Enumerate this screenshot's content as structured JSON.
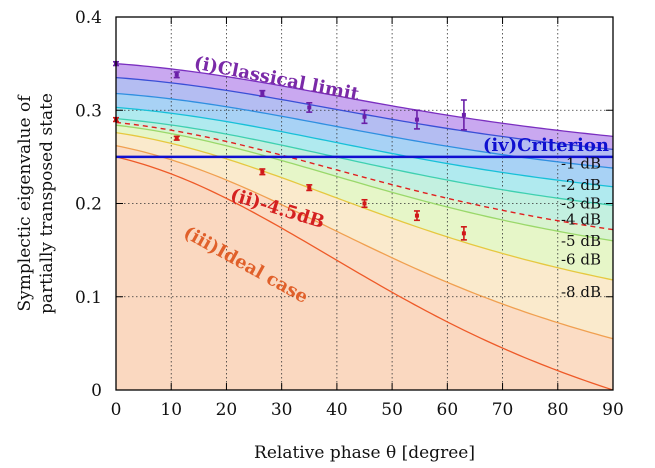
{
  "chart_data": {
    "type": "area",
    "xlabel": "Relative phase θ [degree]",
    "ylabel_lines": [
      "Symplectic eigenvalue of",
      "partially transposed state"
    ],
    "xlim": [
      0,
      90
    ],
    "ylim": [
      0,
      0.4
    ],
    "x_ticks": [
      0,
      10,
      20,
      30,
      40,
      50,
      60,
      70,
      80,
      90
    ],
    "x_tick_labels": [
      "0",
      "10",
      "20",
      "30",
      "40",
      "50",
      "60",
      "70",
      "80",
      "90"
    ],
    "y_ticks": [
      0,
      0.1,
      0.2,
      0.3,
      0.4
    ],
    "y_tick_labels": [
      "0",
      "0.1",
      "0.2",
      "0.3",
      "0.4"
    ],
    "grid": true,
    "criterion": {
      "label": "(iv)Criterion",
      "y": 0.25,
      "color": "#1010d0"
    },
    "curves": [
      {
        "key": "classical",
        "y0": 0.35,
        "y90": 0.272,
        "color": "#7b2fc0",
        "fill": "#c9a8f0"
      },
      {
        "key": "1dB",
        "y0": 0.335,
        "y90": 0.258,
        "color": "#3a4fd6",
        "fill": "#b4bdf2"
      },
      {
        "key": "2dB",
        "y0": 0.318,
        "y90": 0.238,
        "color": "#2f8fe0",
        "fill": "#a8d2f5"
      },
      {
        "key": "3dB",
        "y0": 0.303,
        "y90": 0.218,
        "color": "#17c0d8",
        "fill": "#b0eaef"
      },
      {
        "key": "4dB",
        "y0": 0.291,
        "y90": 0.198,
        "color": "#3fd0b0",
        "fill": "#c3f0e0"
      },
      {
        "key": "4.5dB",
        "y0": 0.287,
        "y90": 0.172,
        "color": "#e02020",
        "fill": "#d8f3cf",
        "dashed": true
      },
      {
        "key": "5dB",
        "y0": 0.284,
        "y90": 0.16,
        "color": "#9ad86a",
        "fill": "#e6f6c8"
      },
      {
        "key": "6dB",
        "y0": 0.276,
        "y90": 0.118,
        "color": "#e6c840",
        "fill": "#faeacc"
      },
      {
        "key": "8dB",
        "y0": 0.262,
        "y90": 0.055,
        "color": "#f0a050",
        "fill": "#fbdcc4"
      },
      {
        "key": "ideal",
        "y0": 0.25,
        "y90": 0.0,
        "color": "#ee5a28",
        "fill": "#fad8c0"
      }
    ],
    "db_labels": [
      {
        "text": "-1 dB",
        "y": 0.243
      },
      {
        "text": "-2 dB",
        "y": 0.22
      },
      {
        "text": "-3 dB",
        "y": 0.2
      },
      {
        "text": "-4 dB",
        "y": 0.183
      },
      {
        "text": "-5 dB",
        "y": 0.16
      },
      {
        "text": "-6 dB",
        "y": 0.14
      },
      {
        "text": "-8 dB",
        "y": 0.105
      }
    ],
    "curve_labels": [
      {
        "text": "(i)Classical limit",
        "x": 14,
        "y": 0.345,
        "angle": 11,
        "color": "#7a2aa8"
      },
      {
        "text": "(ii)-4.5dB",
        "x": 20.5,
        "y": 0.204,
        "angle": 17,
        "color": "#d42020"
      },
      {
        "text": "(iii)Ideal case",
        "x": 12,
        "y": 0.165,
        "angle": 29,
        "color": "#e0602a"
      }
    ],
    "series": [
      {
        "name": "classical-data",
        "color": "#6a1fa8",
        "x": [
          0,
          11,
          26.5,
          35,
          45,
          54.5,
          63
        ],
        "y": [
          0.35,
          0.338,
          0.318,
          0.303,
          0.293,
          0.29,
          0.295
        ],
        "err": [
          0.002,
          0.003,
          0.003,
          0.005,
          0.007,
          0.01,
          0.016
        ]
      },
      {
        "name": "squeezed-data",
        "color": "#d01818",
        "x": [
          0,
          11,
          26.5,
          35,
          45,
          54.5,
          63
        ],
        "y": [
          0.29,
          0.27,
          0.234,
          0.217,
          0.2,
          0.187,
          0.168
        ],
        "err": [
          0.002,
          0.002,
          0.003,
          0.003,
          0.004,
          0.005,
          0.007
        ]
      }
    ]
  }
}
